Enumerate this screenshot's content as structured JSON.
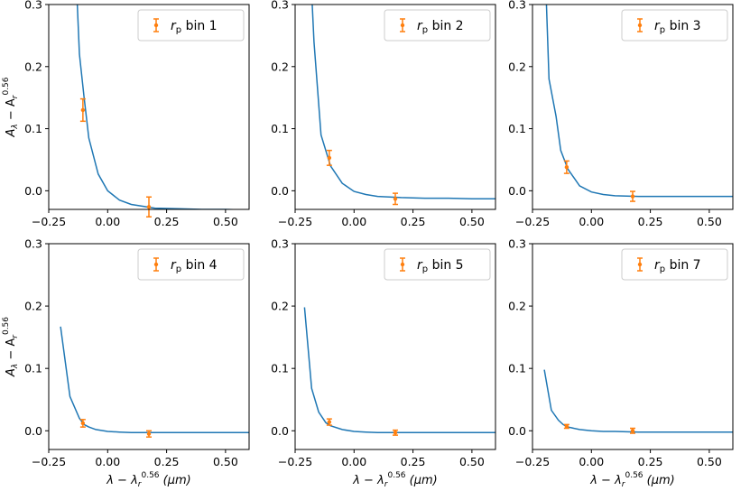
{
  "colors": {
    "model_line": "#1f77b4",
    "data_points": "#ff7f0e",
    "axes": "#000000",
    "legend_border": "#cccccc"
  },
  "labels": {
    "ylabel_main": "A",
    "ylabel_sub_lambda": "λ",
    "ylabel_minus": " − A",
    "ylabel_sub_r": "r",
    "ylabel_sup": "0.56",
    "xlabel_main": "λ − λ",
    "xlabel_sub": "r",
    "xlabel_sup": "0.56",
    "xlabel_unit": " (μm)"
  },
  "chart_data": [
    {
      "type": "line",
      "legend": {
        "prefix": "r",
        "sub": "p",
        "text": " bin 1",
        "placement": "top-right"
      },
      "xlim": [
        -0.25,
        0.6
      ],
      "ylim": [
        -0.03,
        0.3
      ],
      "xticks": [
        "−0.25",
        "0.00",
        "0.25",
        "0.50"
      ],
      "xtick_values": [
        -0.25,
        0,
        0.25,
        0.5
      ],
      "yticks": [
        "0.0",
        "0.1",
        "0.2",
        "0.3"
      ],
      "ytick_values": [
        0,
        0.1,
        0.2,
        0.3
      ],
      "model": {
        "x": [
          -0.14,
          -0.12,
          -0.1,
          -0.08,
          -0.04,
          0,
          0.05,
          0.1,
          0.2,
          0.3,
          0.4,
          0.5,
          0.6
        ],
        "y": [
          0.4,
          0.22,
          0.15,
          0.085,
          0.027,
          0.0,
          -0.015,
          -0.022,
          -0.028,
          -0.029,
          -0.03,
          -0.03,
          -0.031
        ]
      },
      "points": [
        {
          "x": -0.105,
          "y": 0.13,
          "err": 0.018
        },
        {
          "x": 0.175,
          "y": -0.026,
          "err": 0.016
        }
      ]
    },
    {
      "type": "line",
      "legend": {
        "prefix": "r",
        "sub": "p",
        "text": " bin 2",
        "placement": "top-right"
      },
      "xlim": [
        -0.25,
        0.6
      ],
      "ylim": [
        -0.03,
        0.3
      ],
      "xticks": [
        "−0.25",
        "0.00",
        "0.25",
        "0.50"
      ],
      "xtick_values": [
        -0.25,
        0,
        0.25,
        0.5
      ],
      "yticks": [
        "0.0",
        "0.1",
        "0.2",
        "0.3"
      ],
      "ytick_values": [
        0,
        0.1,
        0.2,
        0.3
      ],
      "model": {
        "x": [
          -0.19,
          -0.17,
          -0.14,
          -0.1,
          -0.05,
          0,
          0.05,
          0.1,
          0.2,
          0.3,
          0.4,
          0.5,
          0.6
        ],
        "y": [
          0.4,
          0.24,
          0.09,
          0.04,
          0.012,
          -0.001,
          -0.006,
          -0.009,
          -0.011,
          -0.012,
          -0.012,
          -0.013,
          -0.013
        ]
      },
      "points": [
        {
          "x": -0.105,
          "y": 0.053,
          "err": 0.012
        },
        {
          "x": 0.175,
          "y": -0.013,
          "err": 0.009
        }
      ]
    },
    {
      "type": "line",
      "legend": {
        "prefix": "r",
        "sub": "p",
        "text": " bin 3",
        "placement": "top-right"
      },
      "xlim": [
        -0.25,
        0.6
      ],
      "ylim": [
        -0.03,
        0.3
      ],
      "xticks": [
        "−0.25",
        "0.00",
        "0.25",
        "0.50"
      ],
      "xtick_values": [
        -0.25,
        0,
        0.25,
        0.5
      ],
      "yticks": [
        "0.0",
        "0.1",
        "0.2",
        "0.3"
      ],
      "ytick_values": [
        0,
        0.1,
        0.2,
        0.3
      ],
      "model": {
        "x": [
          -0.2,
          -0.18,
          -0.15,
          -0.13,
          -0.1,
          -0.05,
          0,
          0.05,
          0.1,
          0.2,
          0.3,
          0.4,
          0.5,
          0.6
        ],
        "y": [
          0.4,
          0.18,
          0.12,
          0.065,
          0.035,
          0.008,
          -0.002,
          -0.006,
          -0.008,
          -0.009,
          -0.009,
          -0.009,
          -0.009,
          -0.009
        ]
      },
      "points": [
        {
          "x": -0.105,
          "y": 0.038,
          "err": 0.01
        },
        {
          "x": 0.175,
          "y": -0.009,
          "err": 0.008
        }
      ]
    },
    {
      "type": "line",
      "legend": {
        "prefix": "r",
        "sub": "p",
        "text": " bin 4",
        "placement": "top-right"
      },
      "xlim": [
        -0.25,
        0.6
      ],
      "ylim": [
        -0.03,
        0.3
      ],
      "xticks": [
        "−0.25",
        "0.00",
        "0.25",
        "0.50"
      ],
      "xtick_values": [
        -0.25,
        0,
        0.25,
        0.5
      ],
      "yticks": [
        "0.0",
        "0.1",
        "0.2",
        "0.3"
      ],
      "ytick_values": [
        0,
        0.1,
        0.2,
        0.3
      ],
      "model": {
        "x": [
          -0.2,
          -0.16,
          -0.12,
          -0.1,
          -0.08,
          -0.05,
          0,
          0.05,
          0.1,
          0.2,
          0.3,
          0.4,
          0.5,
          0.6
        ],
        "y": [
          0.167,
          0.055,
          0.02,
          0.01,
          0.006,
          0.002,
          -0.001,
          -0.002,
          -0.003,
          -0.003,
          -0.003,
          -0.003,
          -0.003,
          -0.003
        ]
      },
      "points": [
        {
          "x": -0.105,
          "y": 0.012,
          "err": 0.006
        },
        {
          "x": 0.175,
          "y": -0.005,
          "err": 0.005
        }
      ]
    },
    {
      "type": "line",
      "legend": {
        "prefix": "r",
        "sub": "p",
        "text": " bin 5",
        "placement": "top-right"
      },
      "xlim": [
        -0.25,
        0.6
      ],
      "ylim": [
        -0.03,
        0.3
      ],
      "xticks": [
        "−0.25",
        "0.00",
        "0.25",
        "0.50"
      ],
      "xtick_values": [
        -0.25,
        0,
        0.25,
        0.5
      ],
      "yticks": [
        "0.0",
        "0.1",
        "0.2",
        "0.3"
      ],
      "ytick_values": [
        0,
        0.1,
        0.2,
        0.3
      ],
      "model": {
        "x": [
          -0.21,
          -0.18,
          -0.15,
          -0.12,
          -0.1,
          -0.05,
          0,
          0.05,
          0.1,
          0.2,
          0.3,
          0.4,
          0.5,
          0.6
        ],
        "y": [
          0.198,
          0.068,
          0.03,
          0.013,
          0.008,
          0.002,
          -0.001,
          -0.002,
          -0.003,
          -0.003,
          -0.003,
          -0.003,
          -0.003,
          -0.003
        ]
      },
      "points": [
        {
          "x": -0.105,
          "y": 0.014,
          "err": 0.005
        },
        {
          "x": 0.175,
          "y": -0.003,
          "err": 0.004
        }
      ]
    },
    {
      "type": "line",
      "legend": {
        "prefix": "r",
        "sub": "p",
        "text": " bin 7",
        "placement": "top-right"
      },
      "xlim": [
        -0.25,
        0.6
      ],
      "ylim": [
        -0.03,
        0.3
      ],
      "xticks": [
        "−0.25",
        "0.00",
        "0.25",
        "0.50"
      ],
      "xtick_values": [
        -0.25,
        0,
        0.25,
        0.5
      ],
      "yticks": [
        "0.0",
        "0.1",
        "0.2",
        "0.3"
      ],
      "ytick_values": [
        0,
        0.1,
        0.2,
        0.3
      ],
      "model": {
        "x": [
          -0.2,
          -0.17,
          -0.14,
          -0.12,
          -0.1,
          -0.05,
          0,
          0.05,
          0.1,
          0.2,
          0.3,
          0.4,
          0.5,
          0.6
        ],
        "y": [
          0.098,
          0.033,
          0.017,
          0.01,
          0.006,
          0.002,
          0.0,
          -0.001,
          -0.001,
          -0.002,
          -0.002,
          -0.002,
          -0.002,
          -0.002
        ]
      },
      "points": [
        {
          "x": -0.105,
          "y": 0.007,
          "err": 0.003
        },
        {
          "x": 0.175,
          "y": 0.0,
          "err": 0.004
        }
      ]
    }
  ]
}
